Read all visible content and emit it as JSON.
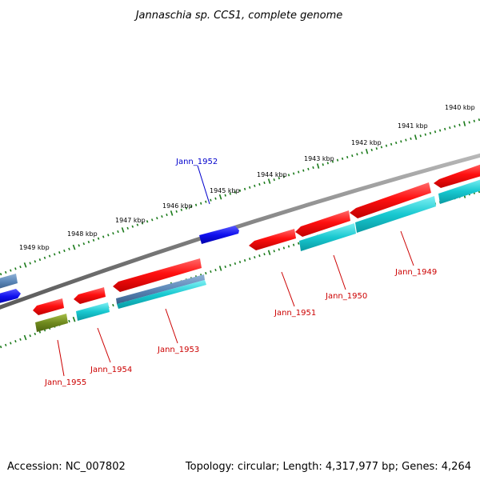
{
  "title": "Jannaschia sp. CCS1, complete genome",
  "footer": {
    "accession": "Accession: NC_007802",
    "summary": "Topology: circular; Length: 4,317,977 bp; Genes: 4,264"
  },
  "colors": {
    "backbone": "#8a8a8a",
    "tick": "#1a7a1a",
    "forward_cds": "#ff1010",
    "reverse_cds": "#1a1aee",
    "rna": "#5b87b8",
    "cyan_feature": "#18c8d0",
    "olive_feature": "#6f8a1e",
    "label_red": "#cc0000",
    "label_blue": "#0000cc"
  },
  "scale_ticks": [
    {
      "label": "1949 kbp"
    },
    {
      "label": "1948 kbp"
    },
    {
      "label": "1947 kbp"
    },
    {
      "label": "1946 kbp"
    },
    {
      "label": "1945 kbp"
    },
    {
      "label": "1944 kbp"
    },
    {
      "label": "1943 kbp"
    },
    {
      "label": "1942 kbp"
    },
    {
      "label": "1941 kbp"
    },
    {
      "label": "1940 kbp"
    }
  ],
  "gene_labels": [
    {
      "name": "Jann_1952",
      "color": "label_blue"
    },
    {
      "name": "Jann_1955",
      "color": "label_red"
    },
    {
      "name": "Jann_1954",
      "color": "label_red"
    },
    {
      "name": "Jann_1953",
      "color": "label_red"
    },
    {
      "name": "Jann_1951",
      "color": "label_red"
    },
    {
      "name": "Jann_1950",
      "color": "label_red"
    },
    {
      "name": "Jann_1949",
      "color": "label_red"
    }
  ]
}
